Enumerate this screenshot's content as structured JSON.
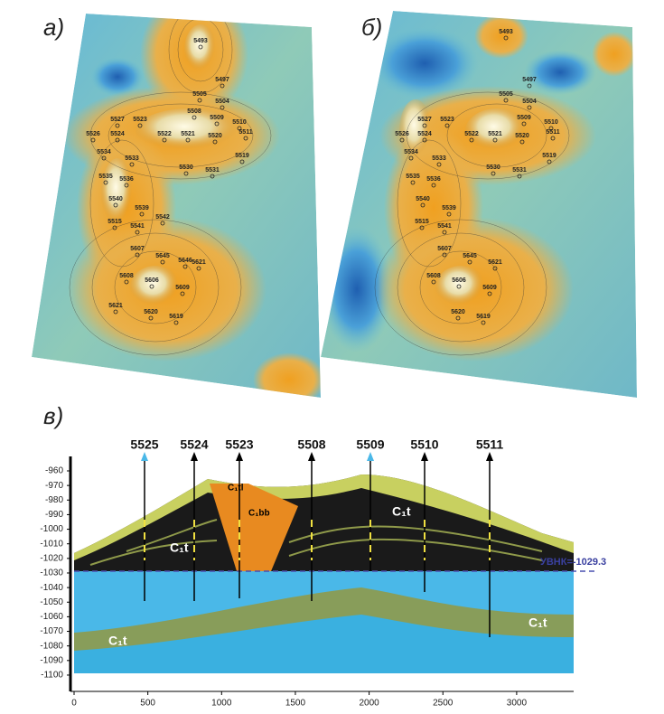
{
  "panels": {
    "a": {
      "label": "а)",
      "wells": [
        "5493",
        "5497",
        "5505",
        "5504",
        "5508",
        "5509",
        "5510",
        "5511",
        "5527",
        "5523",
        "5526",
        "5524",
        "5522",
        "5521",
        "5520",
        "5519",
        "5534",
        "5533",
        "5530",
        "5531",
        "5535",
        "5536",
        "5540",
        "5539",
        "5542",
        "5515",
        "5541",
        "5607",
        "5645",
        "5646",
        "5621",
        "5608",
        "5606",
        "5609",
        "5621",
        "5620",
        "5619"
      ]
    },
    "b": {
      "label": "б)",
      "wells": [
        "5493",
        "5497",
        "5505",
        "5504",
        "5509",
        "5510",
        "5511",
        "5527",
        "5523",
        "5526",
        "5524",
        "5522",
        "5521",
        "5520",
        "5519",
        "5534",
        "5533",
        "5530",
        "5531",
        "5535",
        "5536",
        "5540",
        "5539",
        "5515",
        "5541",
        "5607",
        "5645",
        "5621",
        "5608",
        "5606",
        "5609",
        "5620",
        "5619"
      ]
    },
    "c": {
      "label": "в)",
      "wells": [
        "5525",
        "5524",
        "5523",
        "5508",
        "5509",
        "5510",
        "5511"
      ],
      "formations": [
        "C₁tl",
        "C₁bb",
        "C₁t",
        "C₁t",
        "C₁t",
        "C₁t"
      ],
      "contact": "УВНК=-1029.3",
      "yticks": [
        -960,
        -970,
        -980,
        -990,
        -1000,
        -1010,
        -1020,
        -1030,
        -1040,
        -1050,
        -1060,
        -1070,
        -1080,
        -1090,
        -1100
      ],
      "xticks": [
        0,
        500,
        1000,
        1500,
        2000,
        2500,
        3000
      ]
    }
  }
}
